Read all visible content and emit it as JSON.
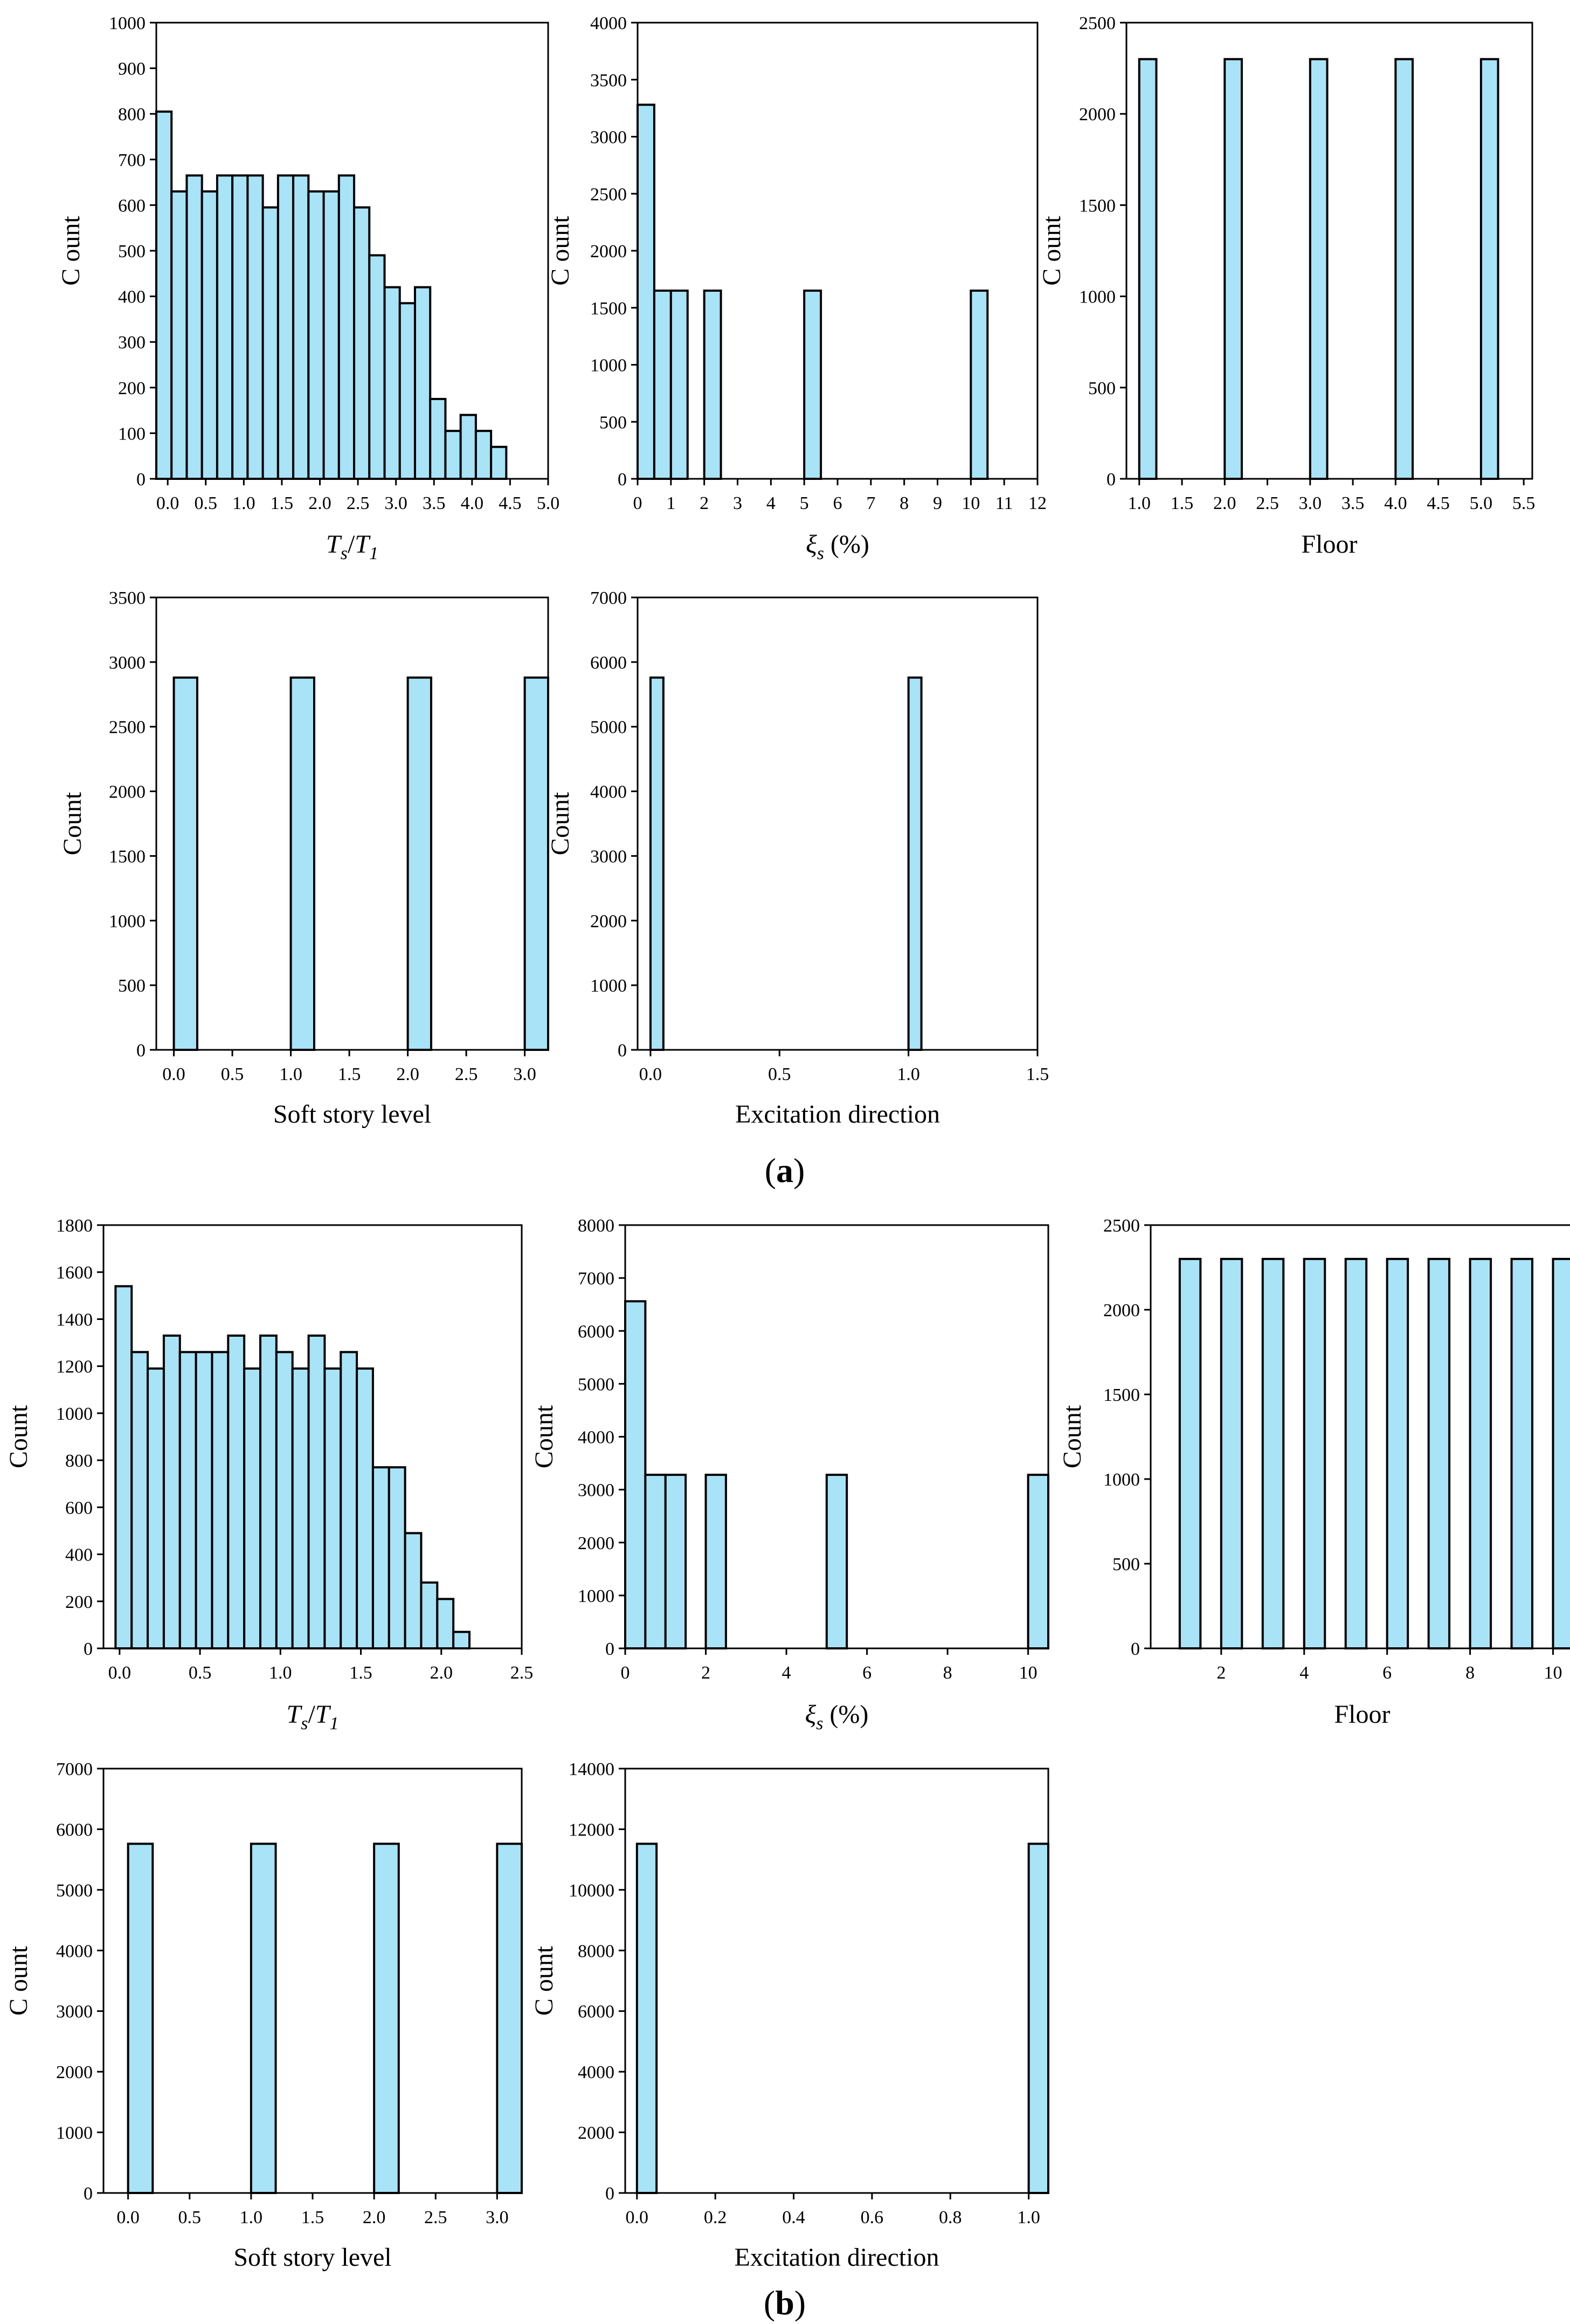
{
  "figure": {
    "panel_a": {
      "open": "(",
      "letter": "a",
      "close": ")"
    },
    "panel_b": {
      "open": "(",
      "letter": "b",
      "close": ")"
    }
  },
  "colors": {
    "bar_fill": "#a8e3f7",
    "bar_stroke": "#000000"
  },
  "chart_data": [
    {
      "id": "a-ts-t1",
      "panel": "a",
      "type": "bar",
      "xlabel": {
        "main": "T",
        "sub1": "s",
        "slash": "/",
        "main2": "T",
        "sub2": "1"
      },
      "ylabel": "C ount",
      "xlim": [
        -0.15,
        5.0
      ],
      "ylim": [
        0,
        1000
      ],
      "xticks": [
        "0.0",
        "0.5",
        "1.0",
        "1.5",
        "2.0",
        "2.5",
        "3.0",
        "3.5",
        "4.0",
        "4.5",
        "5.0"
      ],
      "xtick_values": [
        0,
        0.5,
        1,
        1.5,
        2,
        2.5,
        3,
        3.5,
        4,
        4.5,
        5
      ],
      "yticks": [
        "0",
        "100",
        "200",
        "300",
        "400",
        "500",
        "600",
        "700",
        "800",
        "900",
        "1000"
      ],
      "ytick_values": [
        0,
        100,
        200,
        300,
        400,
        500,
        600,
        700,
        800,
        900,
        1000
      ],
      "bar_width": 0.2,
      "x": [
        -0.05,
        0.15,
        0.35,
        0.55,
        0.75,
        0.95,
        1.15,
        1.35,
        1.55,
        1.75,
        1.95,
        2.15,
        2.35,
        2.55,
        2.75,
        2.95,
        3.15,
        3.35,
        3.55,
        3.75,
        3.95,
        4.15,
        4.35
      ],
      "values": [
        805,
        630,
        665,
        630,
        665,
        665,
        665,
        595,
        665,
        665,
        630,
        630,
        665,
        595,
        490,
        420,
        385,
        420,
        175,
        105,
        140,
        105,
        70
      ]
    },
    {
      "id": "a-xi",
      "panel": "a",
      "type": "bar",
      "xlabel": {
        "main": "ξ",
        "sub1": "s",
        "rest": " (%)"
      },
      "ylabel": "C ount",
      "xlim": [
        0,
        12
      ],
      "ylim": [
        0,
        4000
      ],
      "xticks": [
        "0",
        "1",
        "2",
        "3",
        "4",
        "5",
        "6",
        "7",
        "8",
        "9",
        "10",
        "11",
        "12"
      ],
      "xtick_values": [
        0,
        1,
        2,
        3,
        4,
        5,
        6,
        7,
        8,
        9,
        10,
        11,
        12
      ],
      "yticks": [
        "0",
        "500",
        "1000",
        "1500",
        "2000",
        "2500",
        "3000",
        "3500",
        "4000"
      ],
      "ytick_values": [
        0,
        500,
        1000,
        1500,
        2000,
        2500,
        3000,
        3500,
        4000
      ],
      "bar_width": 0.5,
      "x": [
        0.25,
        0.75,
        1.25,
        2.25,
        5.25,
        10.25
      ],
      "values": [
        3280,
        1650,
        1650,
        1650,
        1650,
        1650
      ]
    },
    {
      "id": "a-floor",
      "panel": "a",
      "type": "bar",
      "xlabel": {
        "text": "Floor"
      },
      "ylabel": "C ount",
      "xlim": [
        0.85,
        5.6
      ],
      "ylim": [
        0,
        2500
      ],
      "xticks": [
        "1.0",
        "1.5",
        "2.0",
        "2.5",
        "3.0",
        "3.5",
        "4.0",
        "4.5",
        "5.0",
        "5.5"
      ],
      "xtick_values": [
        1,
        1.5,
        2,
        2.5,
        3,
        3.5,
        4,
        4.5,
        5,
        5.5
      ],
      "yticks": [
        "0",
        "500",
        "1000",
        "1500",
        "2000",
        "2500"
      ],
      "ytick_values": [
        0,
        500,
        1000,
        1500,
        2000,
        2500
      ],
      "bar_width": 0.2,
      "x": [
        1.1,
        2.1,
        3.1,
        4.1,
        5.1
      ],
      "values": [
        2300,
        2300,
        2300,
        2300,
        2300
      ]
    },
    {
      "id": "a-soft",
      "panel": "a",
      "type": "bar",
      "xlabel": {
        "text": "Soft story level"
      },
      "ylabel": "Count",
      "xlim": [
        -0.15,
        3.2
      ],
      "ylim": [
        0,
        3500
      ],
      "xticks": [
        "0.0",
        "0.5",
        "1.0",
        "1.5",
        "2.0",
        "2.5",
        "3.0"
      ],
      "xtick_values": [
        0,
        0.5,
        1,
        1.5,
        2,
        2.5,
        3
      ],
      "yticks": [
        "0",
        "500",
        "1000",
        "1500",
        "2000",
        "2500",
        "3000",
        "3500"
      ],
      "ytick_values": [
        0,
        500,
        1000,
        1500,
        2000,
        2500,
        3000,
        3500
      ],
      "bar_width": 0.2,
      "x": [
        0.1,
        1.1,
        2.1,
        3.1
      ],
      "values": [
        2880,
        2880,
        2880,
        2880
      ]
    },
    {
      "id": "a-exc",
      "panel": "a",
      "type": "bar",
      "xlabel": {
        "text": "Excitation direction"
      },
      "ylabel": "Count",
      "xlim": [
        -0.05,
        1.5
      ],
      "ylim": [
        0,
        7000
      ],
      "xticks": [
        "0.0",
        "0.5",
        "1.0",
        "1.5"
      ],
      "xtick_values": [
        0,
        0.5,
        1,
        1.5
      ],
      "yticks": [
        "0",
        "1000",
        "2000",
        "3000",
        "4000",
        "5000",
        "6000",
        "7000"
      ],
      "ytick_values": [
        0,
        1000,
        2000,
        3000,
        4000,
        5000,
        6000,
        7000
      ],
      "bar_width": 0.05,
      "x": [
        0.025,
        1.025
      ],
      "values": [
        5760,
        5760
      ]
    },
    {
      "id": "b-ts-t1",
      "panel": "b",
      "type": "bar",
      "xlabel": {
        "main": "T",
        "sub1": "s",
        "slash": "/",
        "main2": "T",
        "sub2": "1"
      },
      "ylabel": "Count",
      "xlim": [
        -0.1,
        2.5
      ],
      "ylim": [
        0,
        1800
      ],
      "xticks": [
        "0.0",
        "0.5",
        "1.0",
        "1.5",
        "2.0",
        "2.5"
      ],
      "xtick_values": [
        0,
        0.5,
        1,
        1.5,
        2,
        2.5
      ],
      "yticks": [
        "0",
        "200",
        "400",
        "600",
        "800",
        "1000",
        "1200",
        "1400",
        "1600",
        "1800"
      ],
      "ytick_values": [
        0,
        200,
        400,
        600,
        800,
        1000,
        1200,
        1400,
        1600,
        1800
      ],
      "bar_width": 0.1,
      "x": [
        0.025,
        0.125,
        0.225,
        0.325,
        0.425,
        0.525,
        0.625,
        0.725,
        0.825,
        0.925,
        1.025,
        1.125,
        1.225,
        1.325,
        1.425,
        1.525,
        1.625,
        1.725,
        1.825,
        1.925,
        2.025,
        2.125
      ],
      "values": [
        1540,
        1260,
        1190,
        1330,
        1260,
        1260,
        1260,
        1330,
        1190,
        1330,
        1260,
        1190,
        1330,
        1190,
        1260,
        1190,
        770,
        770,
        490,
        280,
        210,
        70
      ]
    },
    {
      "id": "b-xi",
      "panel": "b",
      "type": "bar",
      "xlabel": {
        "main": "ξ",
        "sub1": "s",
        "rest": " (%)"
      },
      "ylabel": "Count",
      "xlim": [
        0,
        10.5
      ],
      "ylim": [
        0,
        8000
      ],
      "xticks": [
        "0",
        "2",
        "4",
        "6",
        "8",
        "10"
      ],
      "xtick_values": [
        0,
        2,
        4,
        6,
        8,
        10
      ],
      "yticks": [
        "0",
        "1000",
        "2000",
        "3000",
        "4000",
        "5000",
        "6000",
        "7000",
        "8000"
      ],
      "ytick_values": [
        0,
        1000,
        2000,
        3000,
        4000,
        5000,
        6000,
        7000,
        8000
      ],
      "bar_width": 0.5,
      "x": [
        0.25,
        0.75,
        1.25,
        2.25,
        5.25,
        10.25
      ],
      "values": [
        6560,
        3280,
        3280,
        3280,
        3280,
        3280
      ]
    },
    {
      "id": "b-floor",
      "panel": "b",
      "type": "bar",
      "xlabel": {
        "text": "Floor"
      },
      "ylabel": "Count",
      "xlim": [
        0.3,
        10.5
      ],
      "ylim": [
        0,
        2500
      ],
      "xticks": [
        "2",
        "4",
        "6",
        "8",
        "10"
      ],
      "xtick_values": [
        2,
        4,
        6,
        8,
        10
      ],
      "yticks": [
        "0",
        "500",
        "1000",
        "1500",
        "2000",
        "2500"
      ],
      "ytick_values": [
        0,
        500,
        1000,
        1500,
        2000,
        2500
      ],
      "bar_width": 0.5,
      "x": [
        1.25,
        2.25,
        3.25,
        4.25,
        5.25,
        6.25,
        7.25,
        8.25,
        9.25,
        10.25
      ],
      "values": [
        2300,
        2300,
        2300,
        2300,
        2300,
        2300,
        2300,
        2300,
        2300,
        2300
      ]
    },
    {
      "id": "b-soft",
      "panel": "b",
      "type": "bar",
      "xlabel": {
        "text": "Soft story level"
      },
      "ylabel": "C ount",
      "xlim": [
        -0.2,
        3.2
      ],
      "ylim": [
        0,
        7000
      ],
      "xticks": [
        "0.0",
        "0.5",
        "1.0",
        "1.5",
        "2.0",
        "2.5",
        "3.0"
      ],
      "xtick_values": [
        0,
        0.5,
        1,
        1.5,
        2,
        2.5,
        3
      ],
      "yticks": [
        "0",
        "1000",
        "2000",
        "3000",
        "4000",
        "5000",
        "6000",
        "7000"
      ],
      "ytick_values": [
        0,
        1000,
        2000,
        3000,
        4000,
        5000,
        6000,
        7000
      ],
      "bar_width": 0.2,
      "x": [
        0.1,
        1.1,
        2.1,
        3.1
      ],
      "values": [
        5760,
        5760,
        5760,
        5760
      ]
    },
    {
      "id": "b-exc",
      "panel": "b",
      "type": "bar",
      "xlabel": {
        "text": "Excitation direction"
      },
      "ylabel": "C ount",
      "xlim": [
        -0.03,
        1.05
      ],
      "ylim": [
        0,
        14000
      ],
      "xticks": [
        "0.0",
        "0.2",
        "0.4",
        "0.6",
        "0.8",
        "1.0"
      ],
      "xtick_values": [
        0,
        0.2,
        0.4,
        0.6,
        0.8,
        1
      ],
      "yticks": [
        "0",
        "2000",
        "4000",
        "6000",
        "8000",
        "10000",
        "12000",
        "14000"
      ],
      "ytick_values": [
        0,
        2000,
        4000,
        6000,
        8000,
        10000,
        12000,
        14000
      ],
      "bar_width": 0.05,
      "x": [
        0.025,
        1.025
      ],
      "values": [
        11520,
        11520
      ]
    }
  ]
}
